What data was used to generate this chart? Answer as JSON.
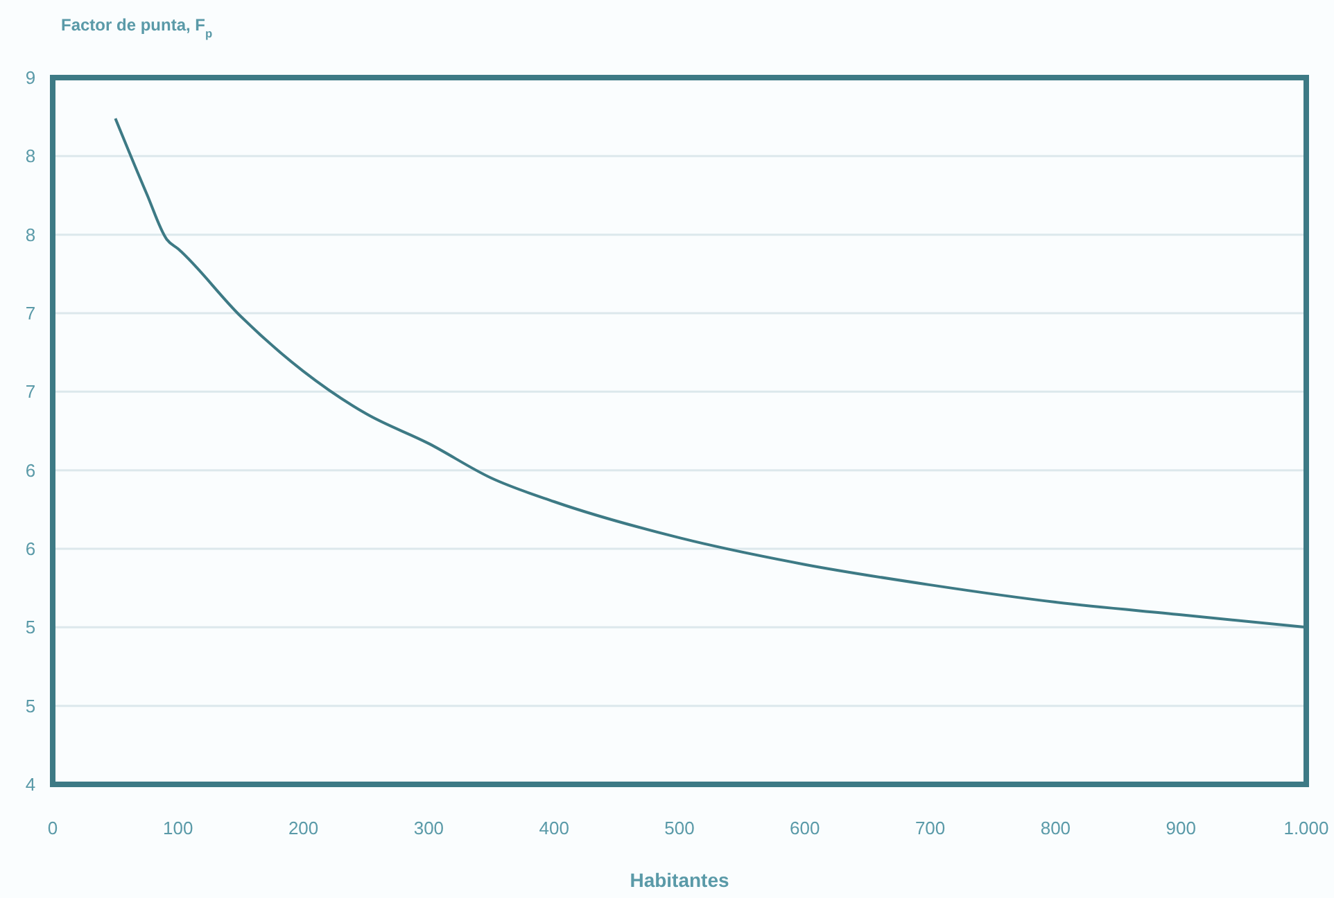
{
  "chart_data": {
    "type": "line",
    "ylabel": "Factor de punta, F$_{p}$",
    "xlabel": "Habitantes",
    "x": [
      50,
      75,
      91,
      100,
      150,
      200,
      250,
      300,
      350,
      400,
      500,
      600,
      700,
      800,
      900,
      1000
    ],
    "series": [
      {
        "color": "#3d7a85",
        "values": [
          8.24,
          7.76,
          7.47,
          7.41,
          6.98,
          6.63,
          6.36,
          6.17,
          5.95,
          5.8,
          5.57,
          5.4,
          5.27,
          5.16,
          5.08,
          5.0
        ]
      }
    ],
    "xlim": [
      0,
      1000
    ],
    "xticks": [
      0,
      100,
      200,
      300,
      400,
      500,
      600,
      700,
      800,
      900,
      {
        "value": 1000,
        "label": "1.000"
      }
    ],
    "ylim": [
      4,
      8.5
    ],
    "yticks": [
      4,
      {
        "value": 4.5,
        "label": "5"
      },
      5,
      {
        "value": 5.5,
        "label": "6"
      },
      6,
      {
        "value": 6.5,
        "label": "7"
      },
      7,
      {
        "value": 7.5,
        "label": "8"
      },
      8,
      {
        "value": 8.5,
        "label": "9"
      }
    ],
    "grid": "y",
    "marker": "none",
    "line_style": "solid"
  }
}
